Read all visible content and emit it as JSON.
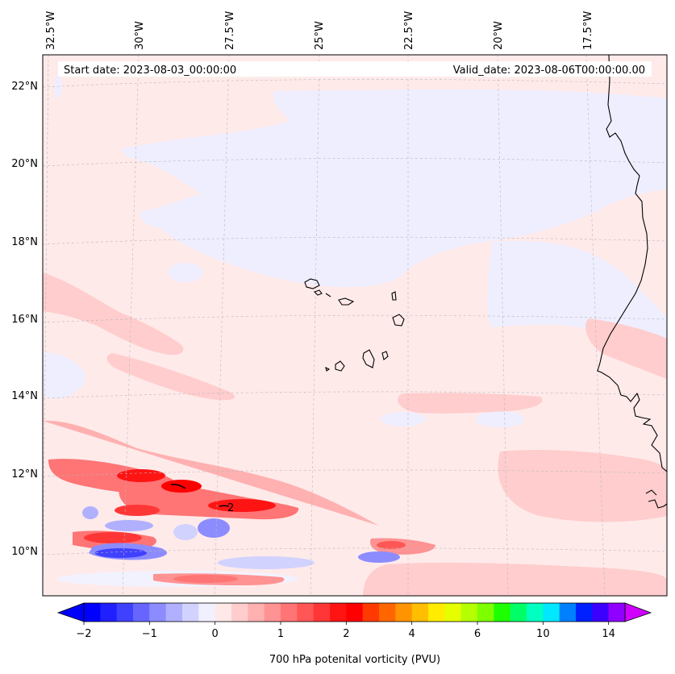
{
  "map": {
    "start_label": "Start date: 2023-08-03_00:00:00",
    "valid_label": "Valid_date: 2023-08-06T00:00:00.00",
    "contour_label": "2",
    "lon_labels": [
      "32.5°W",
      "30°W",
      "27.5°W",
      "25°W",
      "22.5°W",
      "20°W",
      "17.5°W"
    ],
    "lat_labels": [
      "22°N",
      "20°N",
      "18°N",
      "16°N",
      "14°N",
      "12°N",
      "10°N"
    ]
  },
  "colorbar": {
    "title": "700 hPa potenital vorticity (PVU)",
    "ticks": [
      "−2",
      "−1",
      "0",
      "1",
      "2",
      "4",
      "6",
      "10",
      "14"
    ],
    "colors": [
      "#0000ff",
      "#2020ff",
      "#4040ff",
      "#6666ff",
      "#8c8cff",
      "#b0b0ff",
      "#d2d2ff",
      "#f0f0ff",
      "#ffe8e8",
      "#ffcdcd",
      "#ffb0b0",
      "#ff9292",
      "#ff7474",
      "#ff5656",
      "#ff3636",
      "#ff1414",
      "#ff0000",
      "#ff3a00",
      "#ff6600",
      "#ff9400",
      "#ffbe00",
      "#ffec00",
      "#e6ff00",
      "#b4ff00",
      "#7eff00",
      "#1eff00",
      "#00ff66",
      "#00ffc0",
      "#00e8ff",
      "#0080ff",
      "#0020ff",
      "#3c00ff",
      "#9000ff"
    ],
    "over_color": "#d000ff",
    "under_color": "#0000ff"
  }
}
